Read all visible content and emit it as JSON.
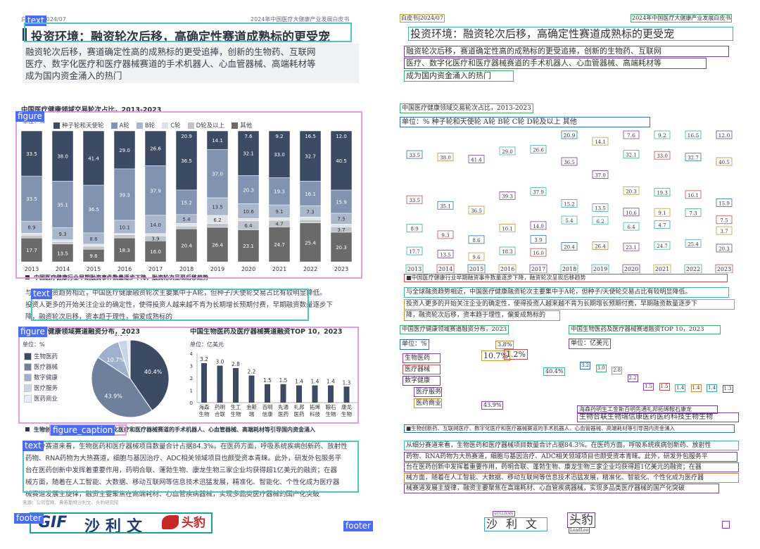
{
  "header": {
    "tag": "白皮书",
    "date": "2024/07",
    "report": "2024年中国医疗大健康产业发展白皮书"
  },
  "section_title": "投资环境：融资轮次后移，高确定性赛道成熟标的更受宠",
  "intro_lines": [
    "融资轮次后移，赛道确定性高的成熟标的更受追捧，创新的生物药、互联网",
    "医疗、数字化医疗和医疗器械赛道的手术机器人、心血管器械、高端耗材等",
    "成为国内资金涌入的热门"
  ],
  "chart1": {
    "title": "中国医疗健康领域交易轮次占比，2013-2023",
    "unit": "单位：%",
    "caption": "中国医疗健康行业早期融资事件数量逐步下降，融资轮次呈现后移趋势"
  },
  "para1_lines": [
    "与全球融资趋势相近，中国医疗健康融资轮次主要集中于A轮，但种子/天使轮交易占比有较明显降低。",
    "投资人更多的开始关注企业的确定性，使得投资人越来越不肯为长期增长预期付费，早期融资数量逐步下",
    "降，融资轮次后移，资本趋于理性，偏爱成熟标的"
  ],
  "chart2": {
    "title": "中国医疗健康领域赛道融资分布，2023",
    "unit": "单位：%",
    "legend": [
      "生物医药",
      "医疗器械",
      "数字健康",
      "医疗服务",
      "医药商业"
    ],
    "colors": [
      "#3d4a63",
      "#6f7f9c",
      "#9eb0cc",
      "#c9d6ea",
      "#e6ecf5"
    ]
  },
  "chart3": {
    "title": "中国生物医药及医疗器械赛道融资TOP 10，2023",
    "unit": "单位：亿美元"
  },
  "caption2": "生物创新药、互联网医疗、数字化医疗和医疗器械赛道的手术机器人、心血管器械、高端耗材等引导国内资金涌入",
  "para2_lines": [
    "从细分赛道来看，生物医药和医疗器械项目数量合计占据84.3%。在医药方面，呼吸系统疾病创新药、放射性",
    "药物、RNA药物为大热赛道，细胞与基因治疗、ADC相关领域项目也颇受资本青睐。此外，研发外包服务平",
    "台在医药创新中发挥着重要作用，药明合联、蓬勃生物、康龙生物三家企业均获得超1亿美元的融资；在器",
    "械方面，随着在人工智能、大数据、移动互联网等信息技术迅猛发展，精准化、智能化、个性化成为医疗器",
    "械赛道发展主旋律，融资主要聚焦在高端耗材、心血管疾病器械，实现多品类医疗器械的国产化突破"
  ],
  "source": "来源：公司官网、弗若斯特沙利文、头豹研究院",
  "footer": {
    "brand1": "沙利文",
    "brand2": "头豹",
    "brand1_en": "SULLIVAN",
    "brand2_en": "LeadLeo"
  },
  "labels": {
    "text": "text",
    "figure": "figure",
    "figure_caption": "figure_caption",
    "footer": "footer"
  },
  "chart_data": [
    {
      "type": "bar",
      "stacked": true,
      "title": "中国医疗健康领域交易轮次占比，2013-2023",
      "ylabel": "单位：%",
      "categories": [
        "2013",
        "2014",
        "2015",
        "2016",
        "2017",
        "2018",
        "2019",
        "2020",
        "2021",
        "2022",
        "2023"
      ],
      "series": [
        {
          "name": "其他",
          "values": [
            17.7,
            13.5,
            9.6,
            18.3,
            16.0,
            20.4,
            26.4,
            23.1,
            24.7,
            25.4,
            20.3
          ],
          "color": "#6a6a6a"
        },
        {
          "name": "D轮及以上",
          "values": [
            2.0,
            1.6,
            2.3,
            2.3,
            3.9,
            1.7,
            2.9,
            6.4,
            4.7,
            2.0,
            3.7
          ],
          "color": "#bfc4cc"
        },
        {
          "name": "C轮",
          "values": [
            1.6,
            1.6,
            1.6,
            1.1,
            1.7,
            1.7,
            6.2,
            1.8,
            1.8,
            1.8,
            1.8
          ],
          "color": "#dfe3e8"
        },
        {
          "name": "B轮",
          "values": [
            8.9,
            9.3,
            8.6,
            10.1,
            14.0,
            5.4,
            13.5,
            10.6,
            9.1,
            7.3,
            7.5
          ],
          "color": "#a9b6cc"
        },
        {
          "name": "A轮",
          "values": [
            33.5,
            35.1,
            36.5,
            39.3,
            37.9,
            15.2,
            37.0,
            20.3,
            19.3,
            16.1,
            15.9
          ],
          "color": "#8193b1"
        },
        {
          "name": "种子轮和天使轮",
          "values": [
            33.5,
            38.0,
            41.4,
            29.0,
            26.6,
            36.5,
            14.1,
            32.1,
            33.0,
            32.7,
            40.5
          ],
          "color": "#3d4a63"
        }
      ],
      "top_labels": [
        "",
        "",
        "",
        "",
        "",
        "20.9",
        "",
        "7.6",
        "9.2",
        "16.5",
        "12.0"
      ],
      "ylim": [
        0,
        100
      ]
    },
    {
      "type": "pie",
      "title": "中国医疗健康领域赛道融资分布，2023",
      "labels": [
        "生物医药",
        "医疗器械",
        "数字健康",
        "医疗服务",
        "医药商业"
      ],
      "values": [
        40.4,
        43.9,
        10.7,
        3.8,
        1.2
      ]
    },
    {
      "type": "bar",
      "title": "中国生物医药及医疗器械赛道融资TOP 10，2023",
      "ylabel": "单位：亿美元",
      "categories": [
        "海森生物",
        "药明合联",
        "生工生物",
        "金斯瑞",
        "百明信康",
        "先通医药",
        "礼邦医药",
        "拓烯科技",
        "鞍石生物",
        "康龙生物"
      ],
      "values": [
        3.2,
        3.0,
        2.8,
        2.2,
        1.5,
        1.5,
        1.4,
        1.4,
        1.4,
        1.3
      ],
      "ylim": [
        0,
        4
      ]
    }
  ]
}
